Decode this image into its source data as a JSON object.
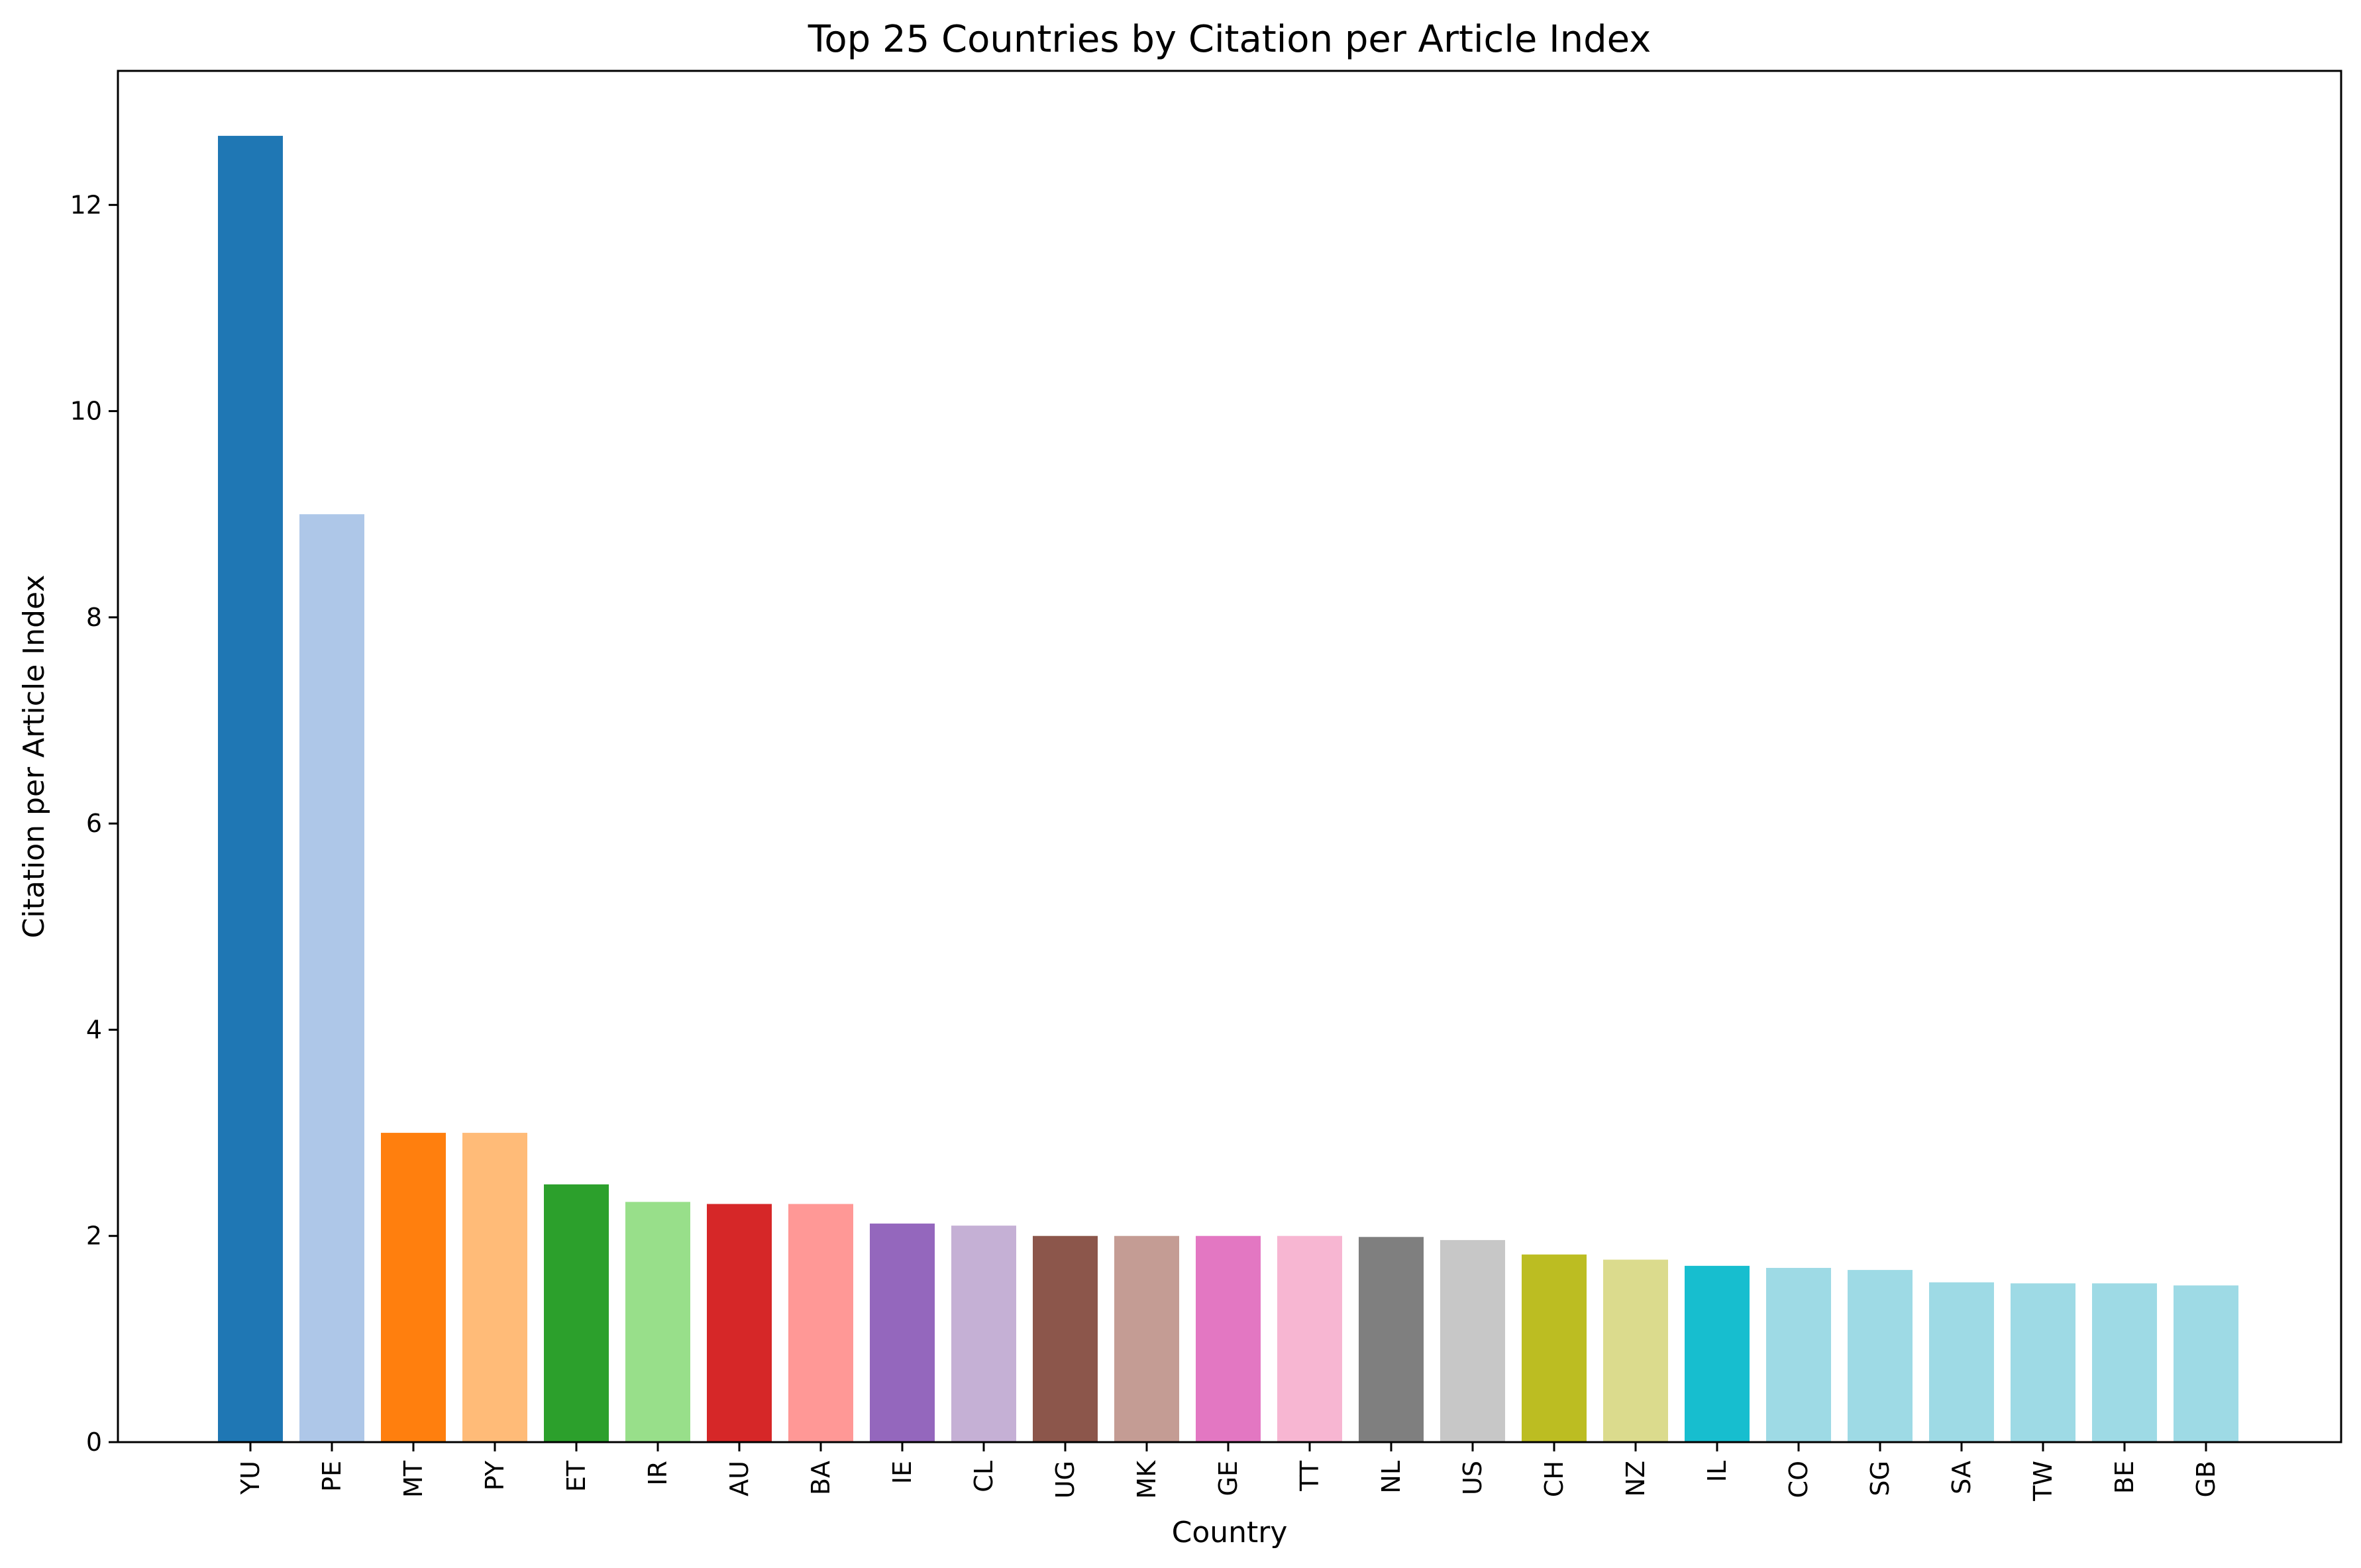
{
  "chart_data": {
    "type": "bar",
    "title": "Top 25 Countries by Citation per Article Index",
    "xlabel": "Country",
    "ylabel": "Citation per Article Index",
    "ylim": [
      0,
      13.3
    ],
    "yticks": [
      0,
      2,
      4,
      6,
      8,
      10,
      12
    ],
    "grid": false,
    "categories": [
      "YU",
      "PE",
      "MT",
      "PY",
      "ET",
      "IR",
      "AU",
      "BA",
      "IE",
      "CL",
      "UG",
      "MK",
      "GE",
      "TT",
      "NL",
      "US",
      "CH",
      "NZ",
      "IL",
      "CO",
      "SG",
      "SA",
      "TW",
      "BE",
      "GB"
    ],
    "values": [
      12.67,
      9.0,
      3.0,
      3.0,
      2.5,
      2.33,
      2.31,
      2.31,
      2.12,
      2.1,
      2.0,
      2.0,
      2.0,
      2.0,
      1.99,
      1.96,
      1.82,
      1.77,
      1.71,
      1.69,
      1.67,
      1.55,
      1.54,
      1.54,
      1.52
    ],
    "colors": [
      "#1f77b4",
      "#aec7e8",
      "#ff7f0e",
      "#ffbb78",
      "#2ca02c",
      "#98df8a",
      "#d62728",
      "#ff9896",
      "#9467bd",
      "#c5b0d5",
      "#8c564b",
      "#c49c94",
      "#e377c2",
      "#f7b6d2",
      "#7f7f7f",
      "#c7c7c7",
      "#bcbd22",
      "#dbdb8d",
      "#17becf",
      "#9edae5",
      "#9edae5",
      "#9edae5",
      "#9edae5",
      "#9edae5",
      "#9edae5"
    ]
  }
}
